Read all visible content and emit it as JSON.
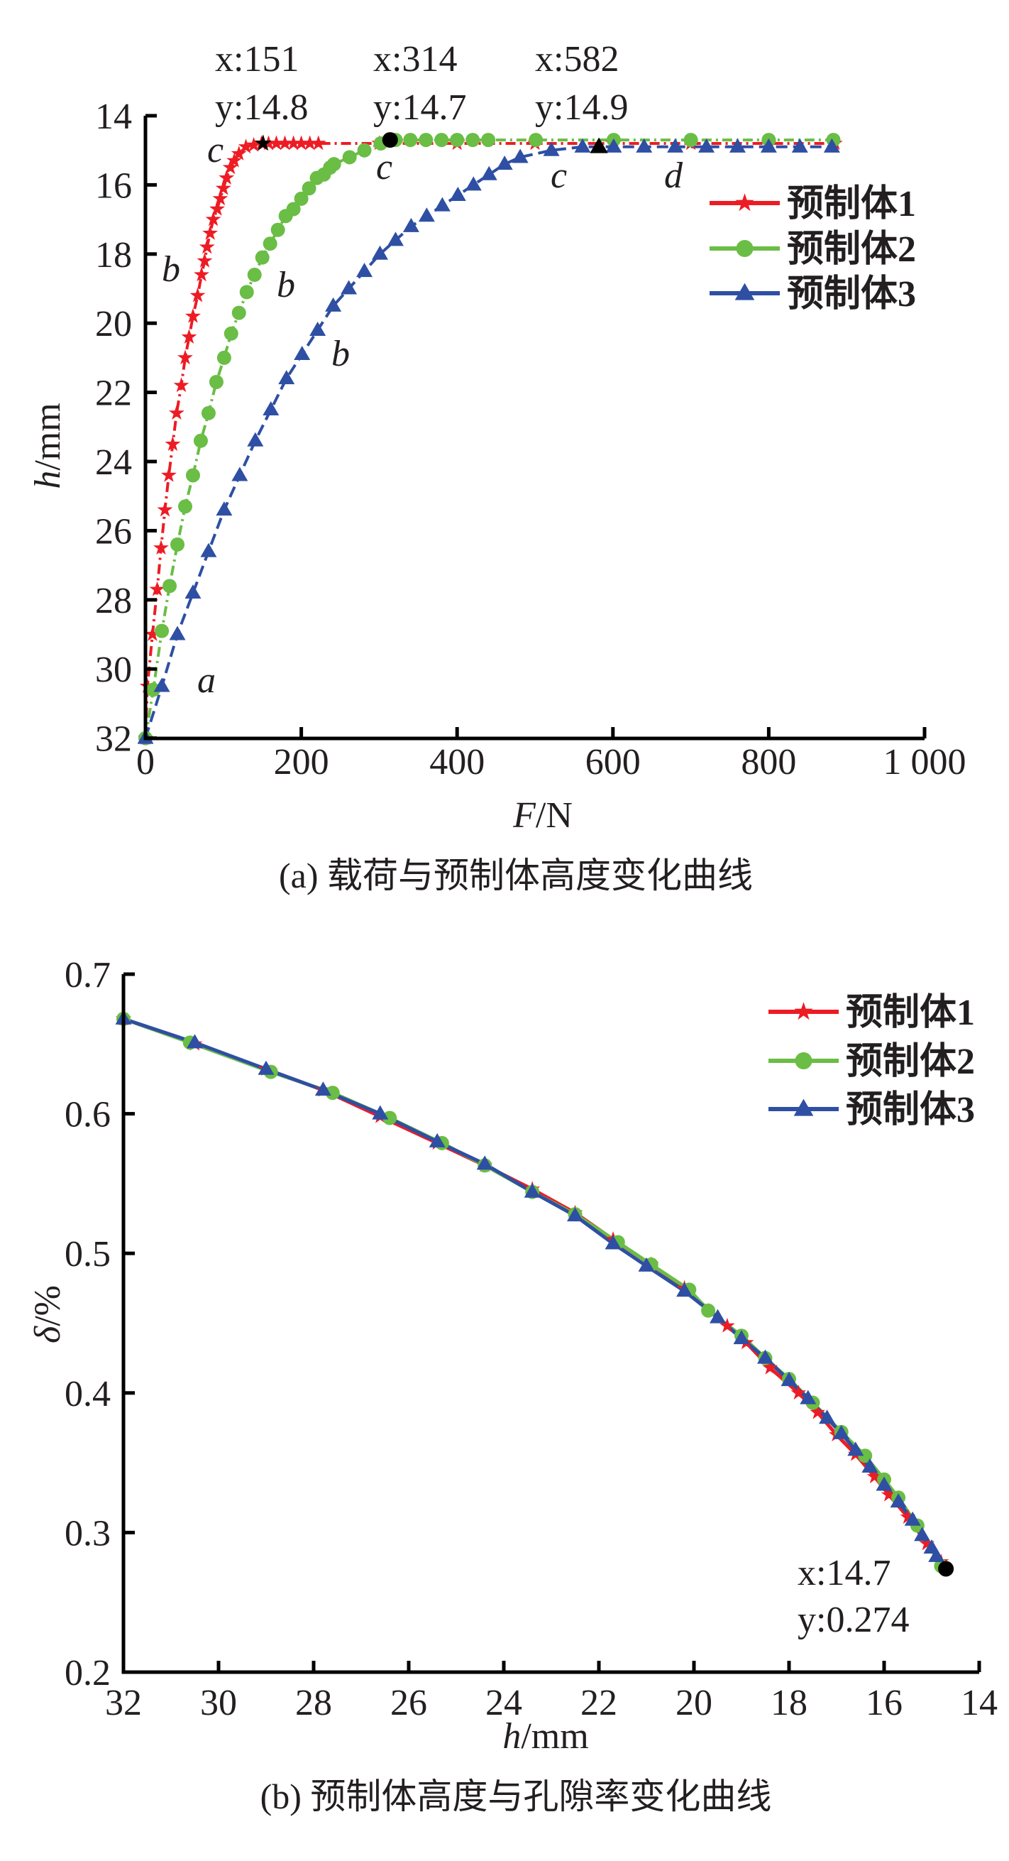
{
  "chart_data": [
    {
      "type": "line",
      "caption": "(a) 载荷与预制体高度变化曲线",
      "xlabel": "F/N",
      "xlabel_var": "F",
      "xlabel_unit": "/N",
      "ylabel_var": "h",
      "ylabel_unit": "/mm",
      "xlim": [
        0,
        1000
      ],
      "ylim": [
        14,
        32
      ],
      "y_inverted": true,
      "xticks": [
        0,
        200,
        400,
        600,
        800,
        1000
      ],
      "xtick_labels": [
        "0",
        "200",
        "400",
        "600",
        "800",
        "1 000"
      ],
      "yticks": [
        14,
        16,
        18,
        20,
        22,
        24,
        26,
        28,
        30,
        32
      ],
      "ytick_labels": [
        "14",
        "16",
        "18",
        "20",
        "22",
        "24",
        "26",
        "28",
        "30",
        "32"
      ],
      "legend_position": "top-right",
      "series": [
        {
          "name": "预制体1",
          "color": "#ed1c24",
          "marker": "star",
          "dash": "14 6 3 6",
          "x": [
            0,
            2.5,
            9,
            15,
            20,
            25,
            30,
            35,
            40,
            46,
            51,
            56,
            61,
            67,
            72,
            76,
            79,
            83,
            87,
            92,
            96,
            100,
            104,
            109,
            114,
            120,
            129,
            139,
            149,
            158,
            168,
            179,
            190,
            200,
            211,
            222,
            300,
            400,
            500,
            600,
            700,
            800,
            885
          ],
          "y": [
            32,
            30.5,
            29,
            27.7,
            26.5,
            25.4,
            24.4,
            23.5,
            22.6,
            21.8,
            21.0,
            20.4,
            19.8,
            19.2,
            18.6,
            18.2,
            17.8,
            17.4,
            17.0,
            16.7,
            16.4,
            16.1,
            15.8,
            15.5,
            15.3,
            15.1,
            14.9,
            14.85,
            14.8,
            14.8,
            14.8,
            14.8,
            14.8,
            14.8,
            14.8,
            14.8,
            14.8,
            14.8,
            14.8,
            14.8,
            14.8,
            14.8,
            14.8
          ]
        },
        {
          "name": "预制体2",
          "color": "#6abd45",
          "marker": "circle",
          "dash": "14 6 3 6",
          "x": [
            0,
            10,
            21,
            31,
            41,
            51,
            61,
            71,
            81,
            91,
            101,
            110,
            120,
            130,
            140,
            150,
            160,
            170,
            180,
            190,
            200,
            210,
            220,
            229,
            237,
            242,
            262,
            281,
            302,
            321,
            340,
            360,
            380,
            400,
            420,
            440,
            501,
            601,
            700,
            800,
            883
          ],
          "y": [
            32,
            30.6,
            28.9,
            27.6,
            26.4,
            25.3,
            24.4,
            23.4,
            22.6,
            21.7,
            21.0,
            20.3,
            19.7,
            19.1,
            18.6,
            18.1,
            17.7,
            17.3,
            16.9,
            16.7,
            16.4,
            16.1,
            15.8,
            15.7,
            15.5,
            15.4,
            15.2,
            15.0,
            14.8,
            14.7,
            14.7,
            14.7,
            14.7,
            14.7,
            14.7,
            14.7,
            14.7,
            14.7,
            14.7,
            14.7,
            14.7
          ]
        },
        {
          "name": "预制体3",
          "color": "#2e4fa3",
          "marker": "triangle",
          "dash": "16 8",
          "x": [
            0,
            21,
            41,
            61,
            81,
            101,
            121,
            141,
            161,
            181,
            201,
            221,
            241,
            261,
            281,
            301,
            321,
            341,
            361,
            381,
            401,
            421,
            441,
            461,
            481,
            521,
            561,
            582,
            601,
            640,
            680,
            720,
            760,
            800,
            840,
            881
          ],
          "y": [
            32,
            30.5,
            29.0,
            27.8,
            26.6,
            25.4,
            24.4,
            23.4,
            22.5,
            21.6,
            20.9,
            20.2,
            19.5,
            19.0,
            18.5,
            18.0,
            17.6,
            17.2,
            16.9,
            16.6,
            16.3,
            16.0,
            15.7,
            15.4,
            15.2,
            15.0,
            14.9,
            14.9,
            14.9,
            14.9,
            14.9,
            14.9,
            14.9,
            14.9,
            14.9,
            14.9
          ]
        }
      ],
      "highlights": [
        {
          "x": 151,
          "y": 14.8,
          "marker": "star",
          "label_x": "x:151",
          "label_y": "y:14.8"
        },
        {
          "x": 314,
          "y": 14.7,
          "marker": "circle",
          "label_x": "x:314",
          "label_y": "y:14.7"
        },
        {
          "x": 582,
          "y": 14.9,
          "marker": "triangle",
          "label_x": "x:582",
          "label_y": "y:14.9"
        }
      ],
      "stage_labels": [
        "c",
        "c",
        "c",
        "d",
        "b",
        "b",
        "b",
        "a"
      ]
    },
    {
      "type": "line",
      "caption": "(b) 预制体高度与孔隙率变化曲线",
      "xlabel_var": "h",
      "xlabel_unit": "/mm",
      "ylabel_var": "δ",
      "ylabel_unit": "/%",
      "xlim": [
        32,
        14
      ],
      "ylim": [
        0.2,
        0.7
      ],
      "xticks": [
        32,
        30,
        28,
        26,
        24,
        22,
        20,
        18,
        16,
        14
      ],
      "xtick_labels": [
        "32",
        "30",
        "28",
        "26",
        "24",
        "22",
        "20",
        "18",
        "16",
        "14"
      ],
      "yticks": [
        0.2,
        0.3,
        0.4,
        0.5,
        0.6,
        0.7
      ],
      "ytick_labels": [
        "0.2",
        "0.3",
        "0.4",
        "0.5",
        "0.6",
        "0.7"
      ],
      "legend_position": "top-right",
      "series": [
        {
          "name": "预制体1",
          "color": "#ed1c24",
          "marker": "star",
          "x": [
            32,
            30.5,
            29.0,
            27.8,
            26.6,
            25.4,
            24.4,
            23.4,
            22.5,
            21.7,
            20.9,
            20.2,
            19.3,
            18.9,
            18.4,
            17.8,
            17.4,
            17.0,
            16.6,
            16.2,
            15.9,
            15.5,
            15.1,
            14.8
          ],
          "y": [
            0.668,
            0.65,
            0.632,
            0.617,
            0.598,
            0.579,
            0.563,
            0.546,
            0.529,
            0.51,
            0.492,
            0.475,
            0.448,
            0.436,
            0.418,
            0.4,
            0.386,
            0.37,
            0.356,
            0.34,
            0.327,
            0.311,
            0.292,
            0.279
          ]
        },
        {
          "name": "预制体2",
          "color": "#6abd45",
          "marker": "circle",
          "x": [
            32,
            30.6,
            28.9,
            27.6,
            26.4,
            25.3,
            24.4,
            23.4,
            22.5,
            21.6,
            20.9,
            20.1,
            19.7,
            19.0,
            18.5,
            18.0,
            17.5,
            16.9,
            16.4,
            16.0,
            15.7,
            15.3,
            14.8
          ],
          "y": [
            0.668,
            0.651,
            0.63,
            0.615,
            0.597,
            0.579,
            0.563,
            0.544,
            0.528,
            0.508,
            0.492,
            0.474,
            0.459,
            0.441,
            0.425,
            0.41,
            0.393,
            0.372,
            0.355,
            0.338,
            0.325,
            0.305,
            0.276
          ]
        },
        {
          "name": "预制体3",
          "color": "#2e4fa3",
          "marker": "triangle",
          "x": [
            32,
            30.5,
            29.0,
            27.8,
            26.6,
            25.4,
            24.4,
            23.4,
            22.5,
            21.7,
            21.0,
            20.2,
            19.5,
            19.0,
            18.5,
            18.0,
            17.6,
            17.2,
            16.9,
            16.6,
            16.3,
            16.0,
            15.7,
            15.4,
            15.2,
            15.0,
            14.9
          ],
          "y": [
            0.668,
            0.651,
            0.632,
            0.617,
            0.6,
            0.58,
            0.564,
            0.544,
            0.527,
            0.507,
            0.491,
            0.473,
            0.454,
            0.439,
            0.425,
            0.409,
            0.396,
            0.382,
            0.371,
            0.359,
            0.347,
            0.334,
            0.322,
            0.309,
            0.298,
            0.289,
            0.283
          ]
        }
      ],
      "highlights": [
        {
          "x": 14.7,
          "y": 0.274,
          "marker": "circle",
          "label_x": "x:14.7",
          "label_y": "y:0.274"
        }
      ]
    }
  ]
}
